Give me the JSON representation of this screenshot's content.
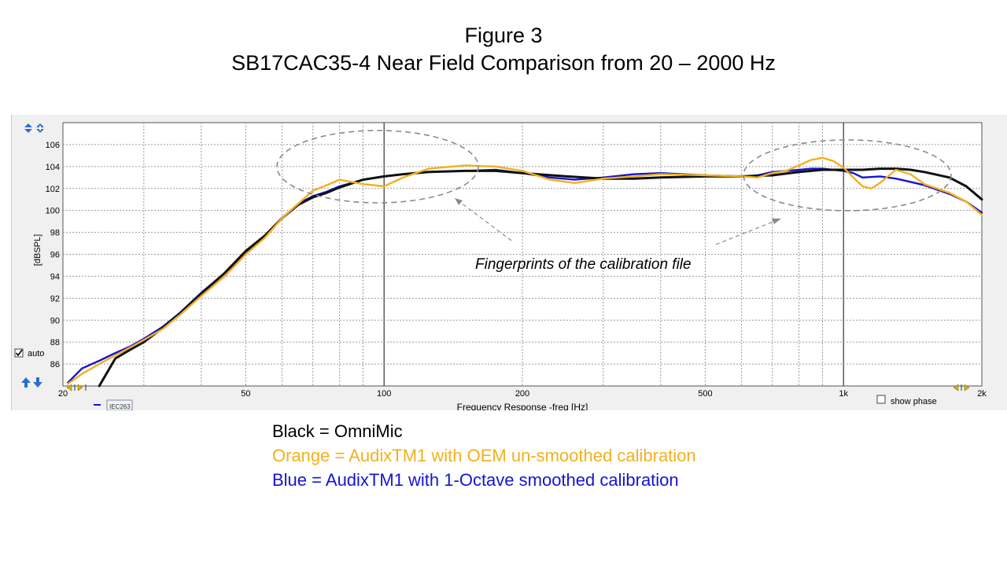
{
  "figure": {
    "title_line1": "Figure 3",
    "title_line2": "SB17CAC35-4 Near Field Comparison from 20 – 2000 Hz"
  },
  "app": {
    "auto_label": "auto",
    "auto_checked": true,
    "show_phase_label": "show phase",
    "tag_label": "IEC263"
  },
  "annotation": {
    "text": "Fingerprints of the calibration file"
  },
  "legend": {
    "black_text": "Black = OmniMic",
    "orange_text": "Orange = AudixTM1 with OEM un-smoothed calibration",
    "blue_text": "Blue = AudixTM1 with 1-Octave smoothed calibration"
  },
  "colors": {
    "black": "#111111",
    "orange": "#f2b01e",
    "blue": "#1414d6",
    "grid": "#9a9a9a",
    "plot_bg": "#ffffff",
    "annotation_ellipse": "#8a8a8a"
  },
  "chart_data": {
    "type": "line",
    "xlabel": "Frequency Response -freq [Hz]",
    "ylabel": "[dBSPL]",
    "x_scale": "log",
    "xlim": [
      20,
      2000
    ],
    "ylim": [
      84,
      108
    ],
    "x_ticks": [
      {
        "value": 20,
        "label": "20"
      },
      {
        "value": 50,
        "label": "50"
      },
      {
        "value": 100,
        "label": "100"
      },
      {
        "value": 200,
        "label": "200"
      },
      {
        "value": 500,
        "label": "500"
      },
      {
        "value": 1000,
        "label": "1k"
      },
      {
        "value": 2000,
        "label": "2k"
      }
    ],
    "y_ticks": [
      86,
      88,
      90,
      92,
      94,
      96,
      98,
      100,
      102,
      104,
      106
    ],
    "grid": true,
    "series": [
      {
        "name": "OmniMic",
        "color": "#111111",
        "x": [
          24,
          26,
          28,
          30,
          33,
          36,
          40,
          45,
          50,
          55,
          60,
          65,
          70,
          75,
          80,
          90,
          100,
          110,
          125,
          150,
          175,
          200,
          250,
          300,
          350,
          400,
          500,
          600,
          700,
          800,
          900,
          1000,
          1100,
          1200,
          1300,
          1400,
          1500,
          1700,
          1850,
          2000
        ],
        "y": [
          84.0,
          86.5,
          87.3,
          88.0,
          89.3,
          90.6,
          92.4,
          94.3,
          96.3,
          97.7,
          99.3,
          100.5,
          101.2,
          101.6,
          102.1,
          102.8,
          103.1,
          103.3,
          103.5,
          103.6,
          103.6,
          103.4,
          103.1,
          102.9,
          102.9,
          103.0,
          103.1,
          103.1,
          103.2,
          103.5,
          103.7,
          103.7,
          103.7,
          103.8,
          103.8,
          103.7,
          103.5,
          103.0,
          102.2,
          101.0
        ]
      },
      {
        "name": "AudixTM1 with OEM un-smoothed calibration",
        "color": "#f2b01e",
        "x": [
          20.5,
          22,
          24,
          26,
          28,
          30,
          33,
          36,
          40,
          45,
          50,
          55,
          60,
          65,
          70,
          75,
          80,
          90,
          100,
          110,
          125,
          150,
          175,
          200,
          230,
          260,
          300,
          350,
          400,
          500,
          600,
          650,
          700,
          750,
          800,
          850,
          900,
          950,
          1000,
          1050,
          1100,
          1150,
          1200,
          1300,
          1400,
          1500,
          1700,
          1850,
          2000
        ],
        "y": [
          84.2,
          85.1,
          86.0,
          86.8,
          87.5,
          88.2,
          89.2,
          90.5,
          92.2,
          94.0,
          96.0,
          97.5,
          99.3,
          100.6,
          101.8,
          102.3,
          102.8,
          102.4,
          102.2,
          103.0,
          103.8,
          104.1,
          104.0,
          103.6,
          102.8,
          102.5,
          102.9,
          103.1,
          103.3,
          103.2,
          103.1,
          103.0,
          103.4,
          103.6,
          104.1,
          104.6,
          104.8,
          104.5,
          103.9,
          103.0,
          102.2,
          102.0,
          102.5,
          103.7,
          103.3,
          102.4,
          101.6,
          100.8,
          99.6
        ]
      },
      {
        "name": "AudixTM1 with 1-Octave smoothed calibration",
        "color": "#1414d6",
        "x": [
          20.5,
          22,
          24,
          26,
          28,
          30,
          33,
          36,
          40,
          45,
          50,
          55,
          60,
          65,
          70,
          75,
          80,
          90,
          100,
          110,
          125,
          150,
          175,
          200,
          230,
          260,
          300,
          350,
          400,
          500,
          600,
          650,
          700,
          750,
          800,
          850,
          900,
          950,
          1000,
          1050,
          1100,
          1200,
          1300,
          1400,
          1500,
          1700,
          1850,
          2000
        ],
        "y": [
          84.3,
          85.6,
          86.3,
          87.0,
          87.6,
          88.3,
          89.4,
          90.7,
          92.5,
          94.3,
          96.1,
          97.6,
          99.3,
          100.6,
          101.3,
          101.7,
          102.2,
          102.8,
          103.1,
          103.3,
          103.5,
          103.6,
          103.7,
          103.4,
          103.0,
          102.8,
          103.0,
          103.3,
          103.4,
          103.2,
          103.1,
          103.2,
          103.5,
          103.6,
          103.7,
          103.8,
          103.8,
          103.7,
          103.6,
          103.4,
          103.0,
          103.1,
          102.9,
          102.6,
          102.3,
          101.5,
          100.8,
          99.8
        ]
      }
    ]
  }
}
